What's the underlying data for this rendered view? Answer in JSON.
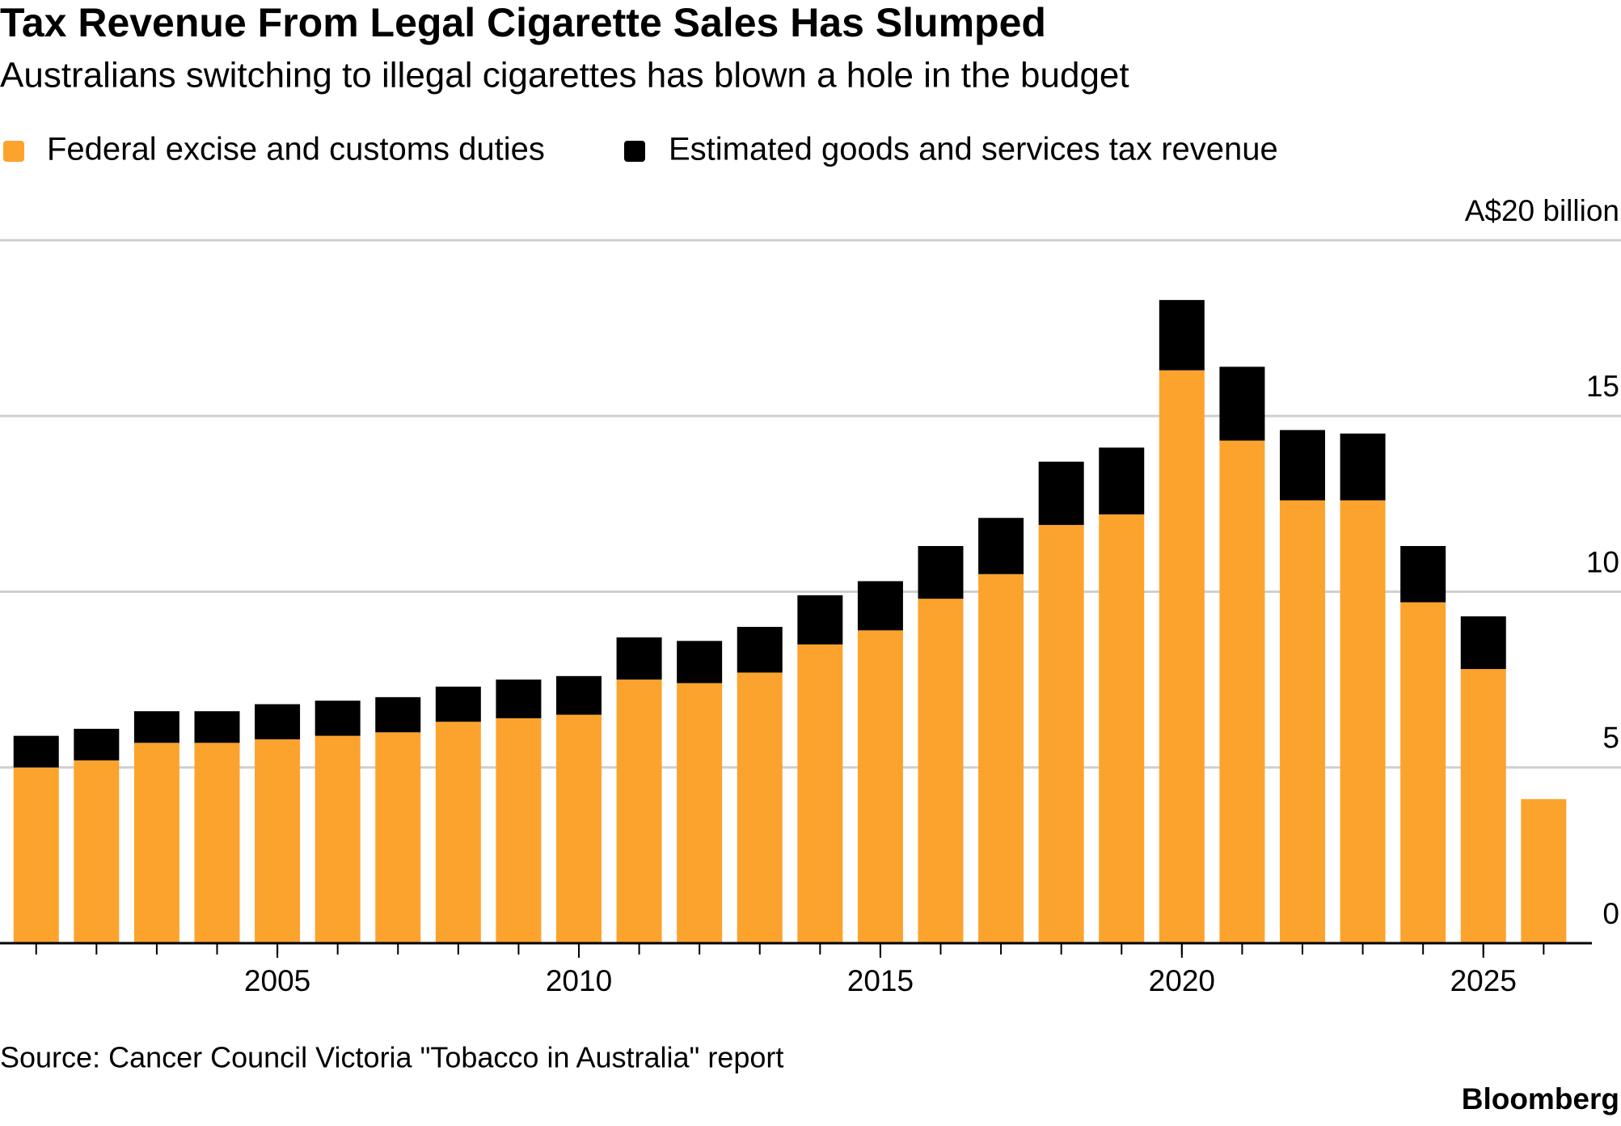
{
  "chart_data": {
    "type": "stacked_bar",
    "title": "Tax Revenue From Legal Cigarette Sales Has Slumped",
    "subtitle": "Australians switching to illegal cigarettes has blown a hole in the budget",
    "source": "Source: Cancer Council Victoria \"Tobacco in Australia\" report",
    "brand": "Bloomberg",
    "x": [
      2001,
      2002,
      2003,
      2004,
      2005,
      2006,
      2007,
      2008,
      2009,
      2010,
      2011,
      2012,
      2013,
      2014,
      2015,
      2016,
      2017,
      2018,
      2019,
      2020,
      2021,
      2022,
      2023,
      2024,
      2025,
      2026
    ],
    "series": [
      {
        "name": "Federal excise and customs duties",
        "color": "#fca32d",
        "values": [
          5.0,
          5.2,
          5.7,
          5.7,
          5.8,
          5.9,
          6.0,
          6.3,
          6.4,
          6.5,
          7.5,
          7.4,
          7.7,
          8.5,
          8.9,
          9.8,
          10.5,
          11.9,
          12.2,
          16.3,
          14.3,
          12.6,
          12.6,
          9.7,
          7.8,
          4.1
        ]
      },
      {
        "name": "Estimated goods and services tax revenue",
        "color": "#000000",
        "values": [
          0.9,
          0.9,
          0.9,
          0.9,
          1.0,
          1.0,
          1.0,
          1.0,
          1.1,
          1.1,
          1.2,
          1.2,
          1.3,
          1.4,
          1.4,
          1.5,
          1.6,
          1.8,
          1.9,
          2.0,
          2.1,
          2.0,
          1.9,
          1.6,
          1.5,
          null
        ]
      }
    ],
    "xlim": [
      2000.4,
      2026.8
    ],
    "xticks": [
      2005,
      2010,
      2015,
      2020,
      2025
    ],
    "ylim": [
      0,
      20
    ],
    "yticks": [
      0,
      5,
      10,
      15,
      {
        "value": 20,
        "label": "A$20 billion"
      }
    ],
    "grid": true
  }
}
